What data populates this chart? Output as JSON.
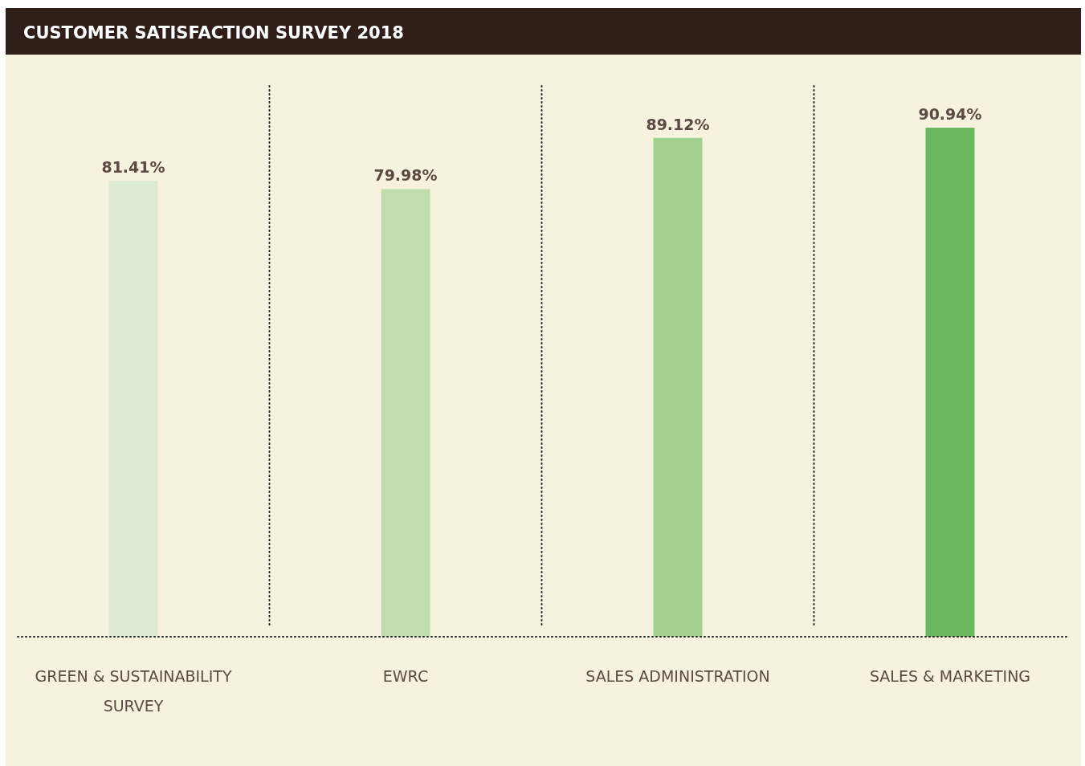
{
  "chart_data": {
    "type": "bar",
    "title": "CUSTOMER SATISFACTION SURVEY 2018",
    "categories": [
      "GREEN & SUSTAINABILITY SURVEY",
      "EWRC",
      "SALES ADMINISTRATION",
      "SALES & MARKETING"
    ],
    "values": [
      81.41,
      79.98,
      89.12,
      90.94
    ],
    "colors": [
      "#dbead0",
      "#c1ddb0",
      "#a3cf8e",
      "#6bb85f"
    ],
    "value_labels": [
      "81.41%",
      "79.98%",
      "89.12%",
      "90.94%"
    ]
  }
}
